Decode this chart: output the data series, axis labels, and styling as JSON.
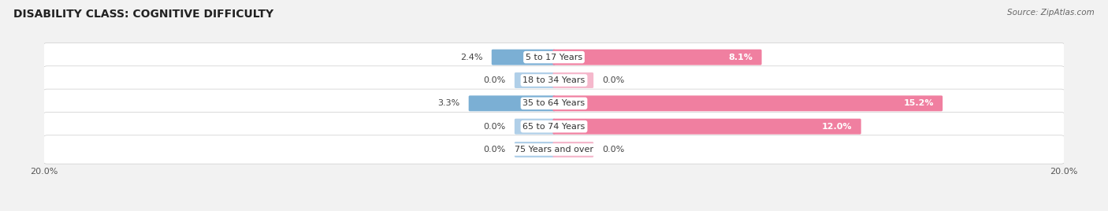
{
  "title": "DISABILITY CLASS: COGNITIVE DIFFICULTY",
  "source": "Source: ZipAtlas.com",
  "categories": [
    "5 to 17 Years",
    "18 to 34 Years",
    "35 to 64 Years",
    "65 to 74 Years",
    "75 Years and over"
  ],
  "male_values": [
    2.4,
    0.0,
    3.3,
    0.0,
    0.0
  ],
  "female_values": [
    8.1,
    0.0,
    15.2,
    12.0,
    0.0
  ],
  "male_color": "#7bafd4",
  "female_color": "#f07fa0",
  "male_color_light": "#b0cfe8",
  "female_color_light": "#f5b8cc",
  "axis_max": 20.0,
  "bg_color": "#f2f2f2",
  "title_fontsize": 10,
  "label_fontsize": 8,
  "tick_fontsize": 8,
  "legend_fontsize": 8,
  "zero_stub": 1.5
}
